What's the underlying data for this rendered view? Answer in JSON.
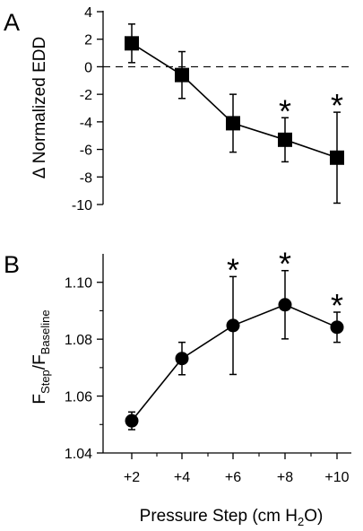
{
  "chart_data": [
    {
      "panel_label": "A",
      "type": "line",
      "marker": "square",
      "x": [
        "+2",
        "+4",
        "+6",
        "+8",
        "+10"
      ],
      "y": [
        1.7,
        -0.6,
        -4.1,
        -5.3,
        -6.6
      ],
      "error": [
        1.4,
        1.7,
        2.1,
        1.6,
        3.3
      ],
      "significant": [
        false,
        false,
        false,
        true,
        true
      ],
      "star_symbol": "*",
      "ylabel": "Δ Normalized EDD",
      "ylim": [
        -10,
        4
      ],
      "yticks": [
        "4",
        "2",
        "0",
        "-2",
        "-4",
        "-6",
        "-8",
        "-10"
      ],
      "reference_line_y": 0,
      "reference_line_style": "dashed"
    },
    {
      "panel_label": "B",
      "type": "line",
      "marker": "circle",
      "x": [
        "+2",
        "+4",
        "+6",
        "+8",
        "+10"
      ],
      "y": [
        1.0513,
        1.0732,
        1.0848,
        1.0921,
        1.0842
      ],
      "error": [
        0.0031,
        0.0057,
        0.0172,
        0.012,
        0.0053
      ],
      "significant": [
        false,
        false,
        true,
        true,
        true
      ],
      "star_symbol": "*",
      "ylabel_main": "F",
      "ylabel_sub1": "Step",
      "ylabel_sep": "/F",
      "ylabel_sub2": "Baseline",
      "ylim": [
        1.04,
        1.11
      ],
      "yticks": [
        "1.10",
        "1.08",
        "1.06",
        "1.04"
      ],
      "xlabel_main": "Pressure Step (cm H",
      "xlabel_sub": "2",
      "xlabel_end": "O)"
    }
  ]
}
